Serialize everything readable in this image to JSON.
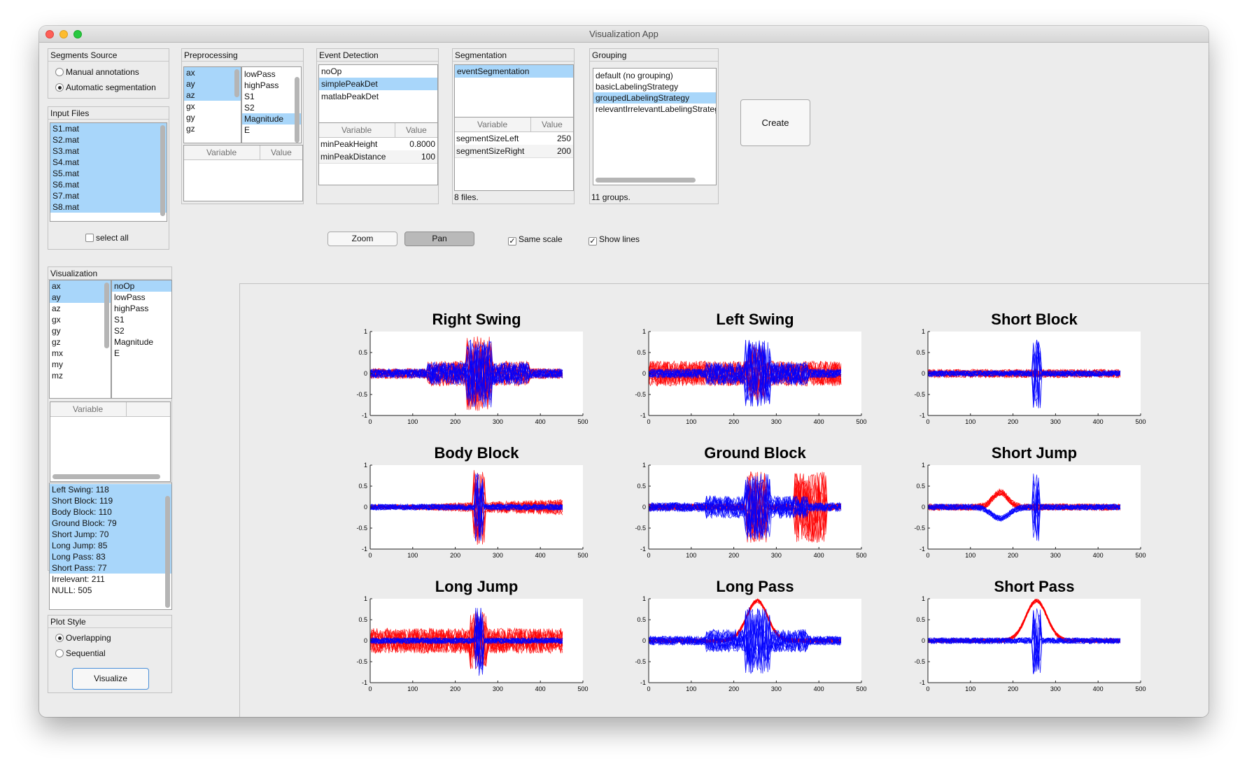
{
  "window": {
    "title": "Visualization App"
  },
  "segments_source": {
    "title": "Segments Source",
    "options": [
      {
        "label": "Manual annotations",
        "selected": false
      },
      {
        "label": "Automatic segmentation",
        "selected": true
      }
    ]
  },
  "input_files": {
    "title": "Input Files",
    "files": [
      "S1.mat",
      "S2.mat",
      "S3.mat",
      "S4.mat",
      "S5.mat",
      "S6.mat",
      "S7.mat",
      "S8.mat"
    ],
    "select_all_label": "select all"
  },
  "preprocessing": {
    "title": "Preprocessing",
    "signals": [
      {
        "label": "ax",
        "selected": true
      },
      {
        "label": "ay",
        "selected": true
      },
      {
        "label": "az",
        "selected": true
      },
      {
        "label": "gx",
        "selected": false
      },
      {
        "label": "gy",
        "selected": false
      },
      {
        "label": "gz",
        "selected": false
      }
    ],
    "algorithms": [
      {
        "label": "lowPass",
        "selected": false
      },
      {
        "label": "highPass",
        "selected": false
      },
      {
        "label": "S1",
        "selected": false
      },
      {
        "label": "S2",
        "selected": false
      },
      {
        "label": "Magnitude",
        "selected": true
      },
      {
        "label": "E",
        "selected": false
      }
    ],
    "col_variable": "Variable",
    "col_value": "Value"
  },
  "event_detection": {
    "title": "Event Detection",
    "algorithms": [
      {
        "label": "noOp",
        "selected": false
      },
      {
        "label": "simplePeakDet",
        "selected": true
      },
      {
        "label": "matlabPeakDet",
        "selected": false
      }
    ],
    "col_variable": "Variable",
    "col_value": "Value",
    "params": [
      {
        "name": "minPeakHeight",
        "value": "0.8000"
      },
      {
        "name": "minPeakDistance",
        "value": "100"
      }
    ]
  },
  "segmentation": {
    "title": "Segmentation",
    "algorithms": [
      {
        "label": "eventSegmentation",
        "selected": true
      }
    ],
    "col_variable": "Variable",
    "col_value": "Value",
    "params": [
      {
        "name": "segmentSizeLeft",
        "value": "250"
      },
      {
        "name": "segmentSizeRight",
        "value": "200"
      }
    ],
    "status": "8 files."
  },
  "grouping": {
    "title": "Grouping",
    "strategies": [
      {
        "label": "default (no grouping)",
        "selected": false
      },
      {
        "label": "basicLabelingStrategy",
        "selected": false
      },
      {
        "label": "groupedLabelingStrategy",
        "selected": true
      },
      {
        "label": "relevantIrrelevantLabelingStrategy",
        "selected": false
      }
    ],
    "status": "11 groups."
  },
  "create_button": "Create",
  "toolbar": {
    "zoom_label": "Zoom",
    "pan_label": "Pan",
    "same_scale_label": "Same scale",
    "same_scale_checked": true,
    "show_lines_label": "Show lines",
    "show_lines_checked": true
  },
  "visualization": {
    "title": "Visualization",
    "signals": [
      {
        "label": "ax",
        "selected": true
      },
      {
        "label": "ay",
        "selected": true
      },
      {
        "label": "az",
        "selected": false
      },
      {
        "label": "gx",
        "selected": false
      },
      {
        "label": "gy",
        "selected": false
      },
      {
        "label": "gz",
        "selected": false
      },
      {
        "label": "mx",
        "selected": false
      },
      {
        "label": "my",
        "selected": false
      },
      {
        "label": "mz",
        "selected": false
      }
    ],
    "algorithms": [
      {
        "label": "noOp",
        "selected": true
      },
      {
        "label": "lowPass",
        "selected": false
      },
      {
        "label": "highPass",
        "selected": false
      },
      {
        "label": "S1",
        "selected": false
      },
      {
        "label": "S2",
        "selected": false
      },
      {
        "label": "Magnitude",
        "selected": false
      },
      {
        "label": "E",
        "selected": false
      }
    ],
    "col_variable": "Variable",
    "classes": [
      {
        "label": "Left Swing: 118",
        "selected": true
      },
      {
        "label": "Short Block: 119",
        "selected": true
      },
      {
        "label": "Body Block: 110",
        "selected": true
      },
      {
        "label": "Ground Block: 79",
        "selected": true
      },
      {
        "label": "Short Jump: 70",
        "selected": true
      },
      {
        "label": "Long Jump: 85",
        "selected": true
      },
      {
        "label": "Long Pass: 83",
        "selected": true
      },
      {
        "label": "Short Pass: 77",
        "selected": true
      },
      {
        "label": "Irrelevant: 211",
        "selected": false
      },
      {
        "label": "NULL: 505",
        "selected": false
      }
    ]
  },
  "plot_style": {
    "title": "Plot Style",
    "options": [
      {
        "label": "Overlapping",
        "selected": true
      },
      {
        "label": "Sequential",
        "selected": false
      }
    ]
  },
  "visualize_button": "Visualize",
  "chart_data": {
    "type": "line",
    "colors": {
      "series_1": "#ff0000",
      "series_2": "#0000ff"
    },
    "shared_axes": {
      "xlim": [
        0,
        500
      ],
      "ylim": [
        -1,
        1
      ],
      "xticks": [
        "0",
        "100",
        "200",
        "300",
        "400",
        "500"
      ],
      "yticks": [
        "1",
        "0.5",
        "0",
        "-0.5",
        "-1"
      ]
    },
    "charts": [
      {
        "title": "Right Swing",
        "event_x": 255,
        "red_pattern": "burst",
        "blue_pattern": "burst"
      },
      {
        "title": "Left Swing",
        "event_x": 255,
        "red_pattern": "noisy",
        "blue_pattern": "burst"
      },
      {
        "title": "Short Block",
        "event_x": 255,
        "red_pattern": "flat",
        "blue_pattern": "spike"
      },
      {
        "title": "Body Block",
        "event_x": 255,
        "red_pattern": "rising",
        "blue_pattern": "spike"
      },
      {
        "title": "Ground Block",
        "event_x": 255,
        "red_pattern": "twin-burst",
        "blue_pattern": "burst"
      },
      {
        "title": "Short Jump",
        "event_x": 255,
        "red_pattern": "hump",
        "blue_pattern": "dip"
      },
      {
        "title": "Long Jump",
        "event_x": 255,
        "red_pattern": "noisy",
        "blue_pattern": "spike"
      },
      {
        "title": "Long Pass",
        "event_x": 255,
        "red_pattern": "peak",
        "blue_pattern": "burst"
      },
      {
        "title": "Short Pass",
        "event_x": 255,
        "red_pattern": "peak",
        "blue_pattern": "spike"
      }
    ]
  }
}
